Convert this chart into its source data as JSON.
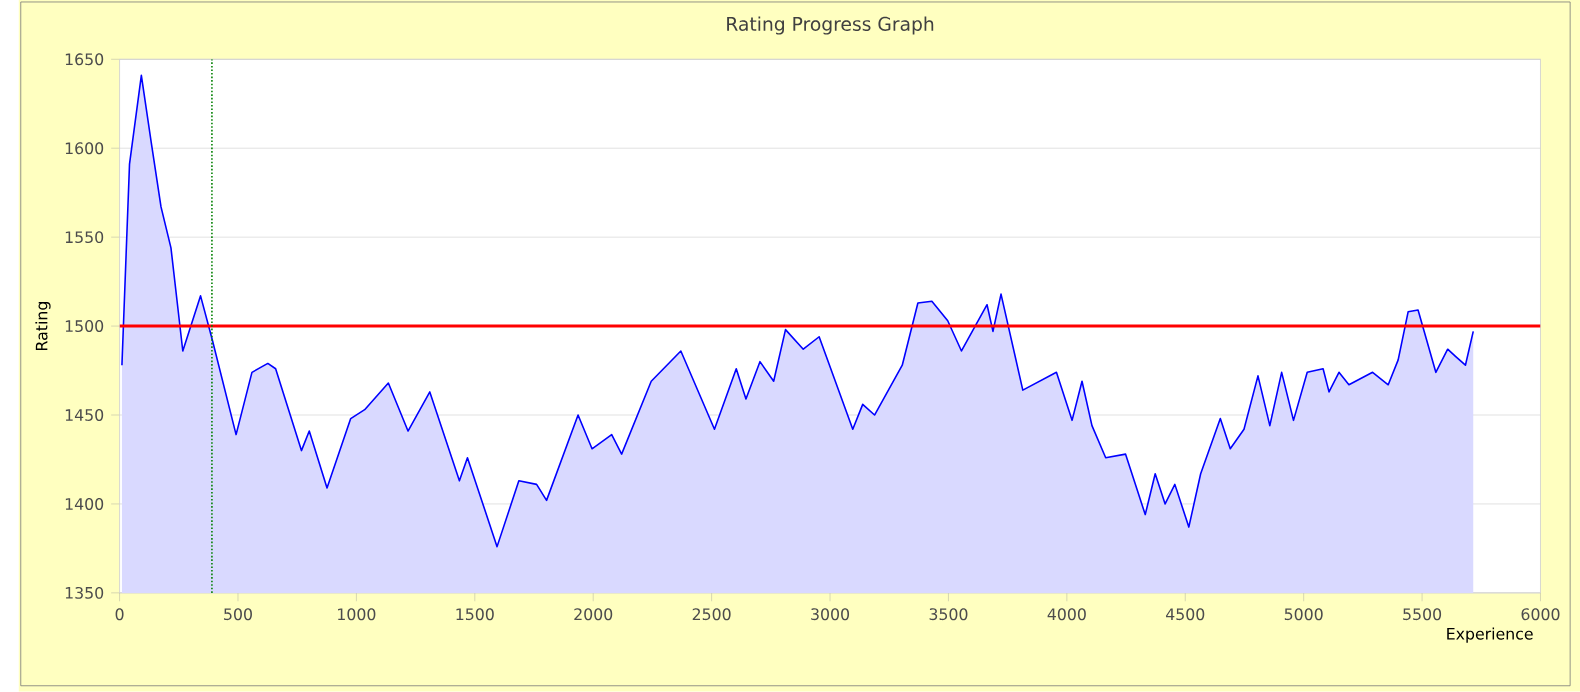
{
  "chart_data": {
    "type": "area",
    "title": "Rating Progress Graph",
    "xlabel": "Experience",
    "ylabel": "Rating",
    "x": [
      10,
      42,
      92,
      134,
      175,
      217,
      267,
      342,
      392,
      492,
      559,
      626,
      659,
      768,
      801,
      876,
      976,
      1035,
      1135,
      1218,
      1310,
      1435,
      1469,
      1594,
      1686,
      1761,
      1803,
      1936,
      1995,
      2078,
      2120,
      2245,
      2370,
      2512,
      2604,
      2645,
      2704,
      2762,
      2812,
      2887,
      2954,
      3096,
      3138,
      3188,
      3305,
      3371,
      3430,
      3497,
      3555,
      3663,
      3688,
      3722,
      3814,
      3956,
      4022,
      4064,
      4106,
      4164,
      4248,
      4331,
      4373,
      4415,
      4456,
      4515,
      4565,
      4648,
      4690,
      4748,
      4807,
      4857,
      4907,
      4957,
      5015,
      5082,
      5107,
      5149,
      5191,
      5291,
      5357,
      5399,
      5441,
      5483,
      5558,
      5608,
      5641,
      5683,
      5716
    ],
    "series": [
      {
        "color": "#0000ff",
        "values": [
          1478,
          1591,
          1641,
          1603,
          1567,
          1544,
          1486,
          1517,
          1492,
          1439,
          1474,
          1479,
          1476,
          1430,
          1441,
          1409,
          1448,
          1453,
          1468,
          1441,
          1463,
          1413,
          1426,
          1376,
          1413,
          1411,
          1402,
          1450,
          1431,
          1439,
          1428,
          1469,
          1486,
          1442,
          1476,
          1459,
          1480,
          1469,
          1498,
          1487,
          1494,
          1442,
          1456,
          1450,
          1478,
          1513,
          1514,
          1503,
          1486,
          1512,
          1497,
          1518,
          1464,
          1474,
          1447,
          1469,
          1444,
          1426,
          1428,
          1394,
          1417,
          1400,
          1411,
          1387,
          1417,
          1448,
          1431,
          1442,
          1472,
          1444,
          1474,
          1447,
          1474,
          1476,
          1463,
          1474,
          1467,
          1474,
          1467,
          1481,
          1508,
          1509,
          1474,
          1487,
          1483,
          1478,
          1497
        ]
      }
    ],
    "xlim": [
      0,
      6000
    ],
    "ylim": [
      1350,
      1650
    ],
    "xticks": [
      0,
      500,
      1000,
      1500,
      2000,
      2500,
      3000,
      3500,
      4000,
      4500,
      5000,
      5500,
      6000
    ],
    "yticks": [
      1350,
      1400,
      1450,
      1500,
      1550,
      1600,
      1650
    ],
    "grid": "y",
    "ref_lines": [
      {
        "axis": "y",
        "value": 1500,
        "color": "#ff0000",
        "line_style": "solid"
      },
      {
        "axis": "x",
        "value": 390,
        "color": "#008000",
        "line_style": "dotted"
      }
    ]
  }
}
